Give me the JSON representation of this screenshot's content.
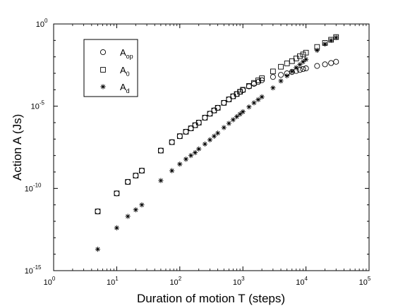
{
  "chart_data": {
    "type": "scatter",
    "title": "",
    "xlabel": "Duration of motion T (steps)",
    "ylabel": "Action A (Js)",
    "xscale": "log",
    "yscale": "log",
    "xlim": [
      1,
      100000
    ],
    "ylim": [
      1e-15,
      1
    ],
    "x_ticks": [
      {
        "base": "10",
        "exp": "0"
      },
      {
        "base": "10",
        "exp": "1"
      },
      {
        "base": "10",
        "exp": "2"
      },
      {
        "base": "10",
        "exp": "3"
      },
      {
        "base": "10",
        "exp": "4"
      },
      {
        "base": "10",
        "exp": "5"
      }
    ],
    "y_ticks": [
      {
        "base": "10",
        "exp": "-15"
      },
      {
        "base": "10",
        "exp": "-10"
      },
      {
        "base": "10",
        "exp": "-5"
      },
      {
        "base": "10",
        "exp": "0"
      }
    ],
    "grid": false,
    "legend_position": "top-left",
    "series": [
      {
        "name": "A_op",
        "label_main": "A",
        "label_sub": "op",
        "marker": "circle",
        "x": [
          5,
          10,
          15,
          20,
          25,
          50,
          75,
          100,
          125,
          150,
          175,
          200,
          250,
          300,
          350,
          400,
          500,
          600,
          700,
          800,
          900,
          1000,
          1250,
          1500,
          1750,
          2000,
          3000,
          4000,
          5000,
          6000,
          7000,
          8000,
          9000,
          10000,
          15000,
          20000,
          25000,
          30000
        ],
        "y": [
          4e-12,
          5e-11,
          2.5e-10,
          6e-10,
          1.2e-09,
          2e-08,
          6.5e-08,
          1.5e-07,
          2.8e-07,
          4.5e-07,
          7e-07,
          1e-06,
          2e-06,
          3.5e-06,
          5.5e-06,
          8e-06,
          1.6e-05,
          2.6e-05,
          4e-05,
          5.5e-05,
          7.5e-05,
          9.5e-05,
          0.00016,
          0.00023,
          0.0003,
          0.00038,
          0.0006,
          0.0008,
          0.001,
          0.0012,
          0.0014,
          0.0016,
          0.0018,
          0.002,
          0.0028,
          0.0035,
          0.0042,
          0.005
        ]
      },
      {
        "name": "A_0",
        "label_main": "A",
        "label_sub": "0",
        "marker": "square",
        "x": [
          5,
          10,
          15,
          20,
          25,
          50,
          75,
          100,
          125,
          150,
          175,
          200,
          250,
          300,
          350,
          400,
          500,
          600,
          700,
          800,
          900,
          1000,
          1250,
          1500,
          1750,
          2000,
          3000,
          4000,
          5000,
          6000,
          7000,
          8000,
          9000,
          10000,
          15000,
          20000,
          25000,
          30000
        ],
        "y": [
          4e-12,
          5e-11,
          2.5e-10,
          6e-10,
          1.2e-09,
          2e-08,
          6.5e-08,
          1.5e-07,
          2.8e-07,
          4.5e-07,
          7e-07,
          1e-06,
          2e-06,
          3.5e-06,
          5.5e-06,
          8e-06,
          1.6e-05,
          2.6e-05,
          4e-05,
          5.5e-05,
          7.5e-05,
          0.0001,
          0.00017,
          0.00026,
          0.00037,
          0.0005,
          0.0013,
          0.0025,
          0.004,
          0.0055,
          0.008,
          0.011,
          0.014,
          0.018,
          0.04,
          0.07,
          0.11,
          0.16
        ]
      },
      {
        "name": "A_d",
        "label_main": "A",
        "label_sub": "d",
        "marker": "asterisk",
        "x": [
          5,
          10,
          15,
          20,
          25,
          50,
          75,
          100,
          125,
          150,
          175,
          200,
          250,
          300,
          350,
          400,
          500,
          600,
          700,
          800,
          900,
          1000,
          1250,
          1500,
          1750,
          2000,
          3000,
          4000,
          5000,
          6000,
          7000,
          8000,
          9000,
          10000,
          15000,
          20000,
          25000,
          30000
        ],
        "y": [
          2e-14,
          4e-13,
          2e-12,
          5e-12,
          1e-11,
          3e-10,
          1.2e-09,
          3e-09,
          6e-09,
          1e-08,
          1.5e-08,
          2.5e-08,
          5e-08,
          9e-08,
          1.5e-07,
          2.3e-07,
          5e-07,
          9e-07,
          1.5e-06,
          2.3e-06,
          3.3e-06,
          4.6e-06,
          9e-06,
          1.6e-05,
          2.5e-05,
          3.7e-05,
          0.00013,
          0.00034,
          0.0007,
          0.0013,
          0.0022,
          0.0034,
          0.005,
          0.007,
          0.025,
          0.06,
          0.1,
          0.15
        ]
      }
    ]
  }
}
